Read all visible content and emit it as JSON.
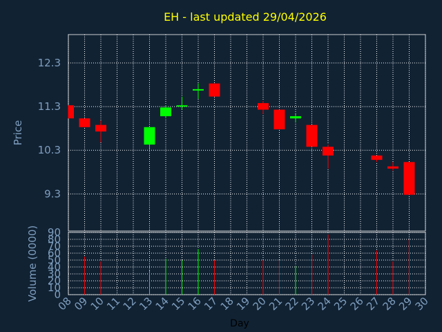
{
  "title": "EH - last updated 29/04/2026",
  "colors": {
    "background": "#112233",
    "title": "#ffff00",
    "axis_text": "#7f9fbf",
    "up": "#00ff00",
    "down": "#ff0000",
    "grid": "#ffffff"
  },
  "chart_data": [
    {
      "type": "candlestick",
      "ylabel": "Price",
      "ylim": [
        8.45,
        12.95
      ],
      "yticks": [
        "12.3",
        "11.3",
        "10.3",
        "9.3"
      ],
      "ytick_values": [
        12.3,
        11.3,
        10.3,
        9.3
      ],
      "grid": true,
      "candles": [
        {
          "day": "08",
          "open": 11.33,
          "high": 11.33,
          "low": 11.03,
          "close": 11.03
        },
        {
          "day": "09",
          "open": 11.03,
          "high": 11.03,
          "low": 10.83,
          "close": 10.83
        },
        {
          "day": "10",
          "open": 10.88,
          "high": 10.98,
          "low": 10.48,
          "close": 10.73
        },
        {
          "day": "13",
          "open": 10.43,
          "high": 10.83,
          "low": 10.33,
          "close": 10.83
        },
        {
          "day": "14",
          "open": 11.08,
          "high": 11.33,
          "low": 11.03,
          "close": 11.28
        },
        {
          "day": "15",
          "open": 11.31,
          "high": 11.53,
          "low": 11.23,
          "close": 11.33
        },
        {
          "day": "16",
          "open": 11.68,
          "high": 11.83,
          "low": 11.48,
          "close": 11.7
        },
        {
          "day": "17",
          "open": 11.83,
          "high": 11.83,
          "low": 11.53,
          "close": 11.53
        },
        {
          "day": "20",
          "open": 11.38,
          "high": 11.43,
          "low": 11.13,
          "close": 11.23
        },
        {
          "day": "21",
          "open": 11.23,
          "high": 11.23,
          "low": 10.78,
          "close": 10.78
        },
        {
          "day": "22",
          "open": 11.03,
          "high": 11.13,
          "low": 10.93,
          "close": 11.08
        },
        {
          "day": "23",
          "open": 10.88,
          "high": 10.88,
          "low": 10.38,
          "close": 10.38
        },
        {
          "day": "24",
          "open": 10.38,
          "high": 10.43,
          "low": 9.88,
          "close": 10.18
        },
        {
          "day": "27",
          "open": 10.18,
          "high": 10.18,
          "low": 10.03,
          "close": 10.08
        },
        {
          "day": "28",
          "open": 9.93,
          "high": 10.03,
          "low": 9.83,
          "close": 9.88
        },
        {
          "day": "29",
          "open": 10.03,
          "high": 10.03,
          "low": 9.28,
          "close": 9.28
        }
      ]
    },
    {
      "type": "bar",
      "ylabel": "Volume (0000)",
      "xlabel": "Day",
      "ylim": [
        0,
        90
      ],
      "yticks": [
        "90",
        "80",
        "70",
        "60",
        "50",
        "40",
        "30",
        "20",
        "10",
        "0"
      ],
      "ytick_values": [
        90,
        80,
        70,
        60,
        50,
        40,
        30,
        20,
        10,
        0
      ],
      "categories": [
        "08",
        "09",
        "10",
        "11",
        "12",
        "13",
        "14",
        "15",
        "16",
        "17",
        "18",
        "19",
        "20",
        "21",
        "22",
        "23",
        "24",
        "25",
        "26",
        "27",
        "28",
        "29",
        "30"
      ],
      "volumes": [
        {
          "day": "09",
          "value": 55,
          "direction": "down"
        },
        {
          "day": "10",
          "value": 48,
          "direction": "down"
        },
        {
          "day": "13",
          "value": 35,
          "direction": "up"
        },
        {
          "day": "14",
          "value": 52,
          "direction": "up"
        },
        {
          "day": "15",
          "value": 50,
          "direction": "up"
        },
        {
          "day": "16",
          "value": 66,
          "direction": "up"
        },
        {
          "day": "17",
          "value": 50,
          "direction": "down"
        },
        {
          "day": "20",
          "value": 50,
          "direction": "down"
        },
        {
          "day": "21",
          "value": 50,
          "direction": "down"
        },
        {
          "day": "22",
          "value": 42,
          "direction": "up"
        },
        {
          "day": "23",
          "value": 58,
          "direction": "down"
        },
        {
          "day": "24",
          "value": 87,
          "direction": "down"
        },
        {
          "day": "27",
          "value": 64,
          "direction": "down"
        },
        {
          "day": "28",
          "value": 48,
          "direction": "down"
        },
        {
          "day": "29",
          "value": 80,
          "direction": "down"
        }
      ]
    }
  ]
}
